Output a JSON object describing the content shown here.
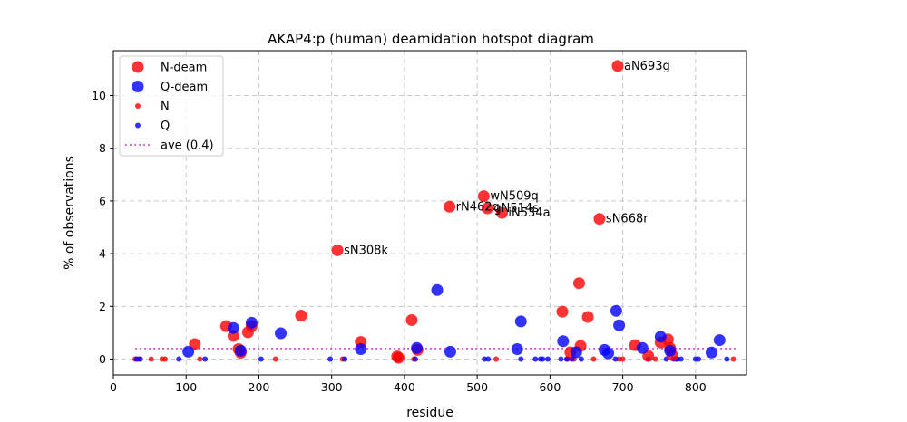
{
  "chart_data": {
    "type": "scatter",
    "title": "AKAP4:p (human) deamidation hotspot diagram",
    "xlabel": "residue",
    "ylabel": "% of observations",
    "xlim": [
      0,
      870
    ],
    "ylim": [
      -0.6,
      11.7
    ],
    "xticks": [
      0,
      100,
      200,
      300,
      400,
      500,
      600,
      700,
      800
    ],
    "yticks": [
      0,
      2,
      4,
      6,
      8,
      10
    ],
    "grid": true,
    "legend_position": "top-left",
    "colors": {
      "N": "#ff0000",
      "Q": "#0000ff",
      "ave": "#cc44cc"
    },
    "legend": [
      {
        "label": "N-deam",
        "kind": "big",
        "color": "#ff0000"
      },
      {
        "label": "Q-deam",
        "kind": "big",
        "color": "#0000ff"
      },
      {
        "label": "N",
        "kind": "small",
        "color": "#ff0000"
      },
      {
        "label": "Q",
        "kind": "small",
        "color": "#0000ff"
      },
      {
        "label": "ave (0.4)",
        "kind": "line",
        "color": "#cc44cc"
      }
    ],
    "average": 0.4,
    "average_x": [
      30,
      855
    ],
    "series": [
      {
        "name": "N-deam",
        "points": [
          [
            112,
            0.57
          ],
          [
            155,
            1.25
          ],
          [
            165,
            0.88
          ],
          [
            172,
            0.38
          ],
          [
            175,
            0.24
          ],
          [
            185,
            1.02
          ],
          [
            190,
            1.25
          ],
          [
            258,
            1.65
          ],
          [
            308,
            4.13
          ],
          [
            340,
            0.65
          ],
          [
            390,
            0.1
          ],
          [
            392,
            0.05
          ],
          [
            410,
            1.48
          ],
          [
            418,
            0.35
          ],
          [
            462,
            5.78
          ],
          [
            509,
            6.18
          ],
          [
            514,
            5.72
          ],
          [
            534,
            5.55
          ],
          [
            617,
            1.8
          ],
          [
            628,
            0.26
          ],
          [
            640,
            2.88
          ],
          [
            642,
            0.5
          ],
          [
            652,
            1.6
          ],
          [
            668,
            5.32
          ],
          [
            693,
            11.12
          ],
          [
            717,
            0.53
          ],
          [
            735,
            0.12
          ],
          [
            752,
            0.63
          ],
          [
            762,
            0.75
          ],
          [
            765,
            0.42
          ],
          [
            768,
            0.15
          ]
        ]
      },
      {
        "name": "Q-deam",
        "points": [
          [
            103,
            0.28
          ],
          [
            165,
            1.18
          ],
          [
            175,
            0.32
          ],
          [
            190,
            1.38
          ],
          [
            230,
            0.98
          ],
          [
            340,
            0.38
          ],
          [
            417,
            0.42
          ],
          [
            445,
            2.62
          ],
          [
            463,
            0.28
          ],
          [
            555,
            0.38
          ],
          [
            560,
            1.43
          ],
          [
            618,
            0.68
          ],
          [
            636,
            0.26
          ],
          [
            675,
            0.35
          ],
          [
            680,
            0.22
          ],
          [
            691,
            1.83
          ],
          [
            695,
            1.28
          ],
          [
            727,
            0.42
          ],
          [
            752,
            0.85
          ],
          [
            765,
            0.32
          ],
          [
            822,
            0.25
          ],
          [
            833,
            0.72
          ]
        ]
      },
      {
        "name": "N",
        "points": [
          [
            30,
            0
          ],
          [
            35,
            0
          ],
          [
            52,
            0
          ],
          [
            67,
            0
          ],
          [
            71,
            0
          ],
          [
            119,
            0
          ],
          [
            223,
            0
          ],
          [
            315,
            0
          ],
          [
            388,
            0
          ],
          [
            413,
            0
          ],
          [
            526,
            0
          ],
          [
            624,
            0
          ],
          [
            633,
            0
          ],
          [
            660,
            0
          ],
          [
            695,
            0
          ],
          [
            700,
            0
          ],
          [
            745,
            0
          ],
          [
            773,
            0
          ],
          [
            852,
            0
          ]
        ]
      },
      {
        "name": "Q",
        "points": [
          [
            32,
            0
          ],
          [
            37,
            0
          ],
          [
            90,
            0
          ],
          [
            126,
            0
          ],
          [
            203,
            0
          ],
          [
            298,
            0
          ],
          [
            318,
            0
          ],
          [
            393,
            0
          ],
          [
            415,
            0
          ],
          [
            510,
            0
          ],
          [
            515,
            0
          ],
          [
            560,
            0
          ],
          [
            580,
            0
          ],
          [
            587,
            0
          ],
          [
            590,
            0
          ],
          [
            597,
            0
          ],
          [
            615,
            0
          ],
          [
            623,
            0
          ],
          [
            630,
            0
          ],
          [
            643,
            0
          ],
          [
            690,
            0
          ],
          [
            735,
            0
          ],
          [
            760,
            0
          ],
          [
            770,
            0
          ],
          [
            775,
            0
          ],
          [
            780,
            0
          ],
          [
            800,
            0
          ],
          [
            804,
            0
          ],
          [
            843,
            0
          ]
        ]
      }
    ],
    "annotations": [
      {
        "text": "sN308k",
        "x": 308,
        "y": 4.13
      },
      {
        "text": "rN462q",
        "x": 462,
        "y": 5.78
      },
      {
        "text": "wN509q",
        "x": 509,
        "y": 6.18
      },
      {
        "text": "gN514s",
        "x": 514,
        "y": 5.72
      },
      {
        "text": "iN534a",
        "x": 534,
        "y": 5.55
      },
      {
        "text": "sN668r",
        "x": 668,
        "y": 5.32
      },
      {
        "text": "aN693g",
        "x": 693,
        "y": 11.12
      }
    ]
  }
}
